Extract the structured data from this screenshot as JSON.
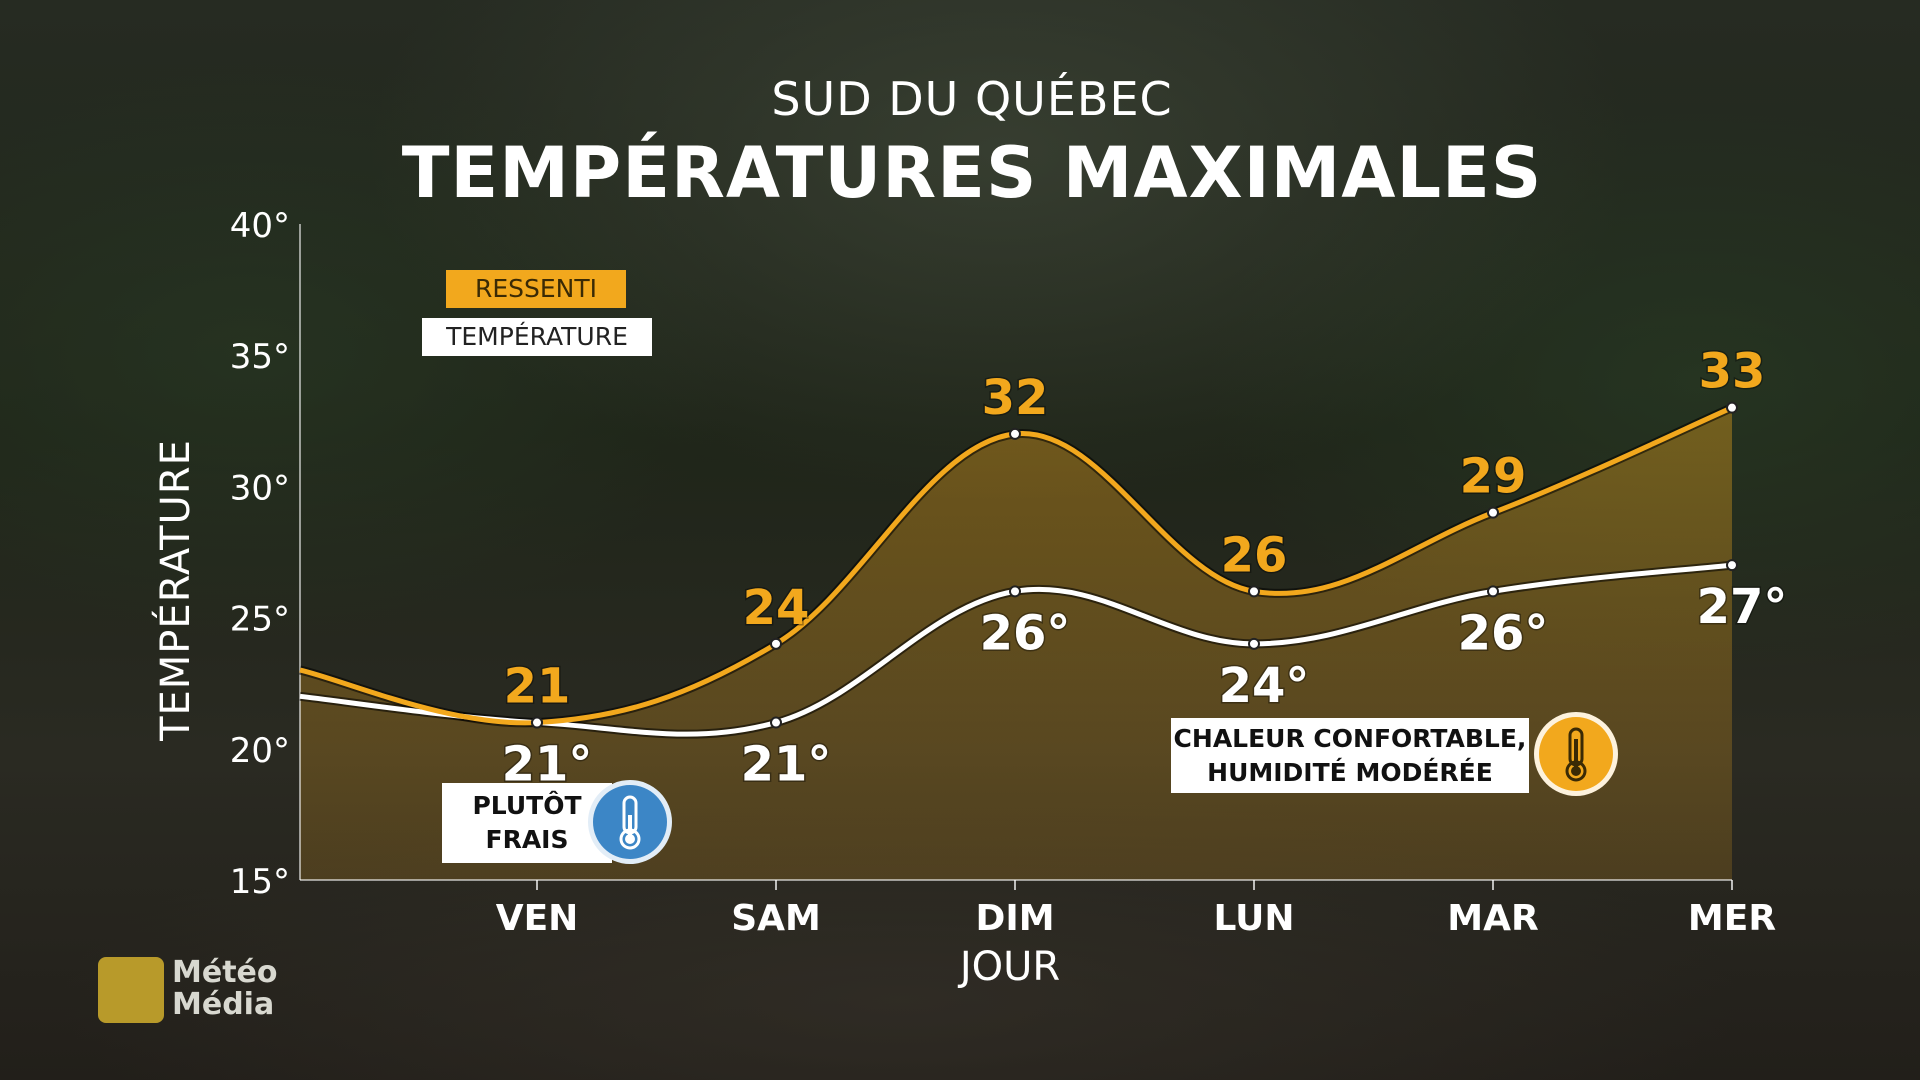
{
  "header": {
    "region": "SUD DU QUÉBEC",
    "title": "TEMPÉRATURES MAXIMALES"
  },
  "legend": {
    "felt_label": "RESSENTI",
    "temp_label": "TEMPÉRATURE"
  },
  "callouts": {
    "cool": [
      "PLUTÔT",
      "FRAIS"
    ],
    "warm": [
      "CHALEUR CONFORTABLE,",
      "HUMIDITÉ MODÉRÉE"
    ]
  },
  "icons": {
    "cool_badge": "thermometer-cool-icon",
    "warm_badge": "thermometer-warm-icon"
  },
  "branding": {
    "logo_line1": "Météo",
    "logo_line2": "Média"
  },
  "colors": {
    "felt": "#f2a81d",
    "temp": "#ffffff",
    "cool_badge": "#3c86c6",
    "warm_badge": "#f2a81d"
  },
  "chart_data": {
    "type": "line",
    "xlabel": "JOUR",
    "ylabel": "TEMPÉRATURE",
    "categories": [
      "VEN",
      "SAM",
      "DIM",
      "LUN",
      "MAR",
      "MER"
    ],
    "ylim": [
      15,
      40
    ],
    "yticks": [
      15,
      20,
      25,
      30,
      35,
      40
    ],
    "ytick_labels": [
      "15°",
      "20°",
      "25°",
      "30°",
      "35°",
      "40°"
    ],
    "left_edge": {
      "felt": 23,
      "temp": 22
    },
    "series": [
      {
        "name": "RESSENTI",
        "values": [
          21,
          24,
          32,
          26,
          29,
          33
        ],
        "labels": [
          "21",
          "24",
          "32",
          "26",
          "29",
          "33"
        ]
      },
      {
        "name": "TEMPÉRATURE",
        "values": [
          21,
          21,
          26,
          24,
          26,
          27
        ],
        "labels": [
          "21°",
          "21°",
          "26°",
          "24°",
          "26°",
          "27°"
        ]
      }
    ],
    "grid": false,
    "legend_position": "top-left"
  }
}
